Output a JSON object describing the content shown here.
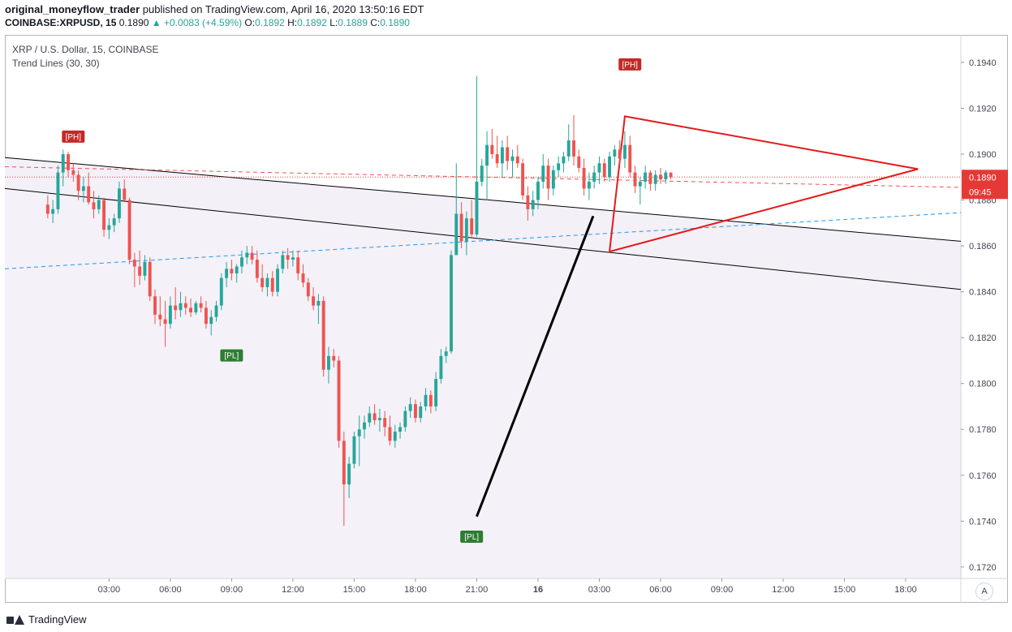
{
  "header": {
    "author": "original_moneyflow_trader",
    "published": "published on TradingView.com, April 16, 2020 13:50:16 EDT"
  },
  "symbol_line": {
    "symbol": "COINBASE:XRPUSD, 15",
    "last": "0.1890",
    "arrow": "▲",
    "change": "+0.0083 (+4.59%)",
    "o_label": "O:",
    "o": "0.1892",
    "h_label": "H:",
    "h": "0.1892",
    "l_label": "L:",
    "l": "0.1889",
    "c_label": "C:",
    "c": "0.1890"
  },
  "legend": {
    "title": "XRP / U.S. Dollar, 15, COINBASE",
    "indicator": "Trend Lines (30, 30)"
  },
  "footer": {
    "brand": "TradingView"
  },
  "scale_button": "A",
  "colors": {
    "up": "#26a69a",
    "down": "#ef5350",
    "pivot_high": "#c62828",
    "pivot_low": "#2e7d32",
    "triangle": "#e41a1a",
    "trend_black": "#000000",
    "dashed_blue": "#2196f3",
    "price_label": "#e53935"
  },
  "chart_data": {
    "type": "candlestick",
    "ylim": [
      0.1715,
      0.1952
    ],
    "y_ticks": [
      "0.1940",
      "0.1920",
      "0.1900",
      "0.1880",
      "0.1860",
      "0.1840",
      "0.1820",
      "0.1800",
      "0.1780",
      "0.1760",
      "0.1740",
      "0.1720"
    ],
    "x_ticks": [
      {
        "label": "03:00",
        "t": 3
      },
      {
        "label": "06:00",
        "t": 6
      },
      {
        "label": "09:00",
        "t": 9
      },
      {
        "label": "12:00",
        "t": 12
      },
      {
        "label": "15:00",
        "t": 15
      },
      {
        "label": "18:00",
        "t": 18
      },
      {
        "label": "21:00",
        "t": 21
      },
      {
        "label": "16",
        "t": 24
      },
      {
        "label": "03:00",
        "t": 27
      },
      {
        "label": "06:00",
        "t": 30
      },
      {
        "label": "09:00",
        "t": 33
      },
      {
        "label": "12:00",
        "t": 36
      },
      {
        "label": "15:00",
        "t": 39
      },
      {
        "label": "18:00",
        "t": 42
      }
    ],
    "xlim": [
      -2.1,
      44.7
    ],
    "last_price": "0.1890",
    "countdown": "09:45",
    "pivots": [
      {
        "label": "[PH]",
        "t": 1.25,
        "price": 0.19025,
        "type": "high"
      },
      {
        "label": "[PL]",
        "t": 9.0,
        "price": 0.1817,
        "type": "low"
      },
      {
        "label": "[PL]",
        "t": 20.75,
        "price": 0.1738,
        "type": "low"
      },
      {
        "label": "[PH]",
        "t": 28.5,
        "price": 0.1934,
        "type": "high"
      }
    ],
    "lines": [
      {
        "kind": "trend",
        "color": "black",
        "from": [
          -2.1,
          0.18985
        ],
        "to": [
          44.7,
          0.1862
        ]
      },
      {
        "kind": "trend",
        "color": "black",
        "from": [
          -2.1,
          0.1885
        ],
        "to": [
          44.7,
          0.1841
        ]
      },
      {
        "kind": "trend-thick",
        "color": "black",
        "from": [
          21.0,
          0.1742
        ],
        "to": [
          26.7,
          0.1873
        ]
      },
      {
        "kind": "dashed",
        "color": "blue",
        "from": [
          -2.1,
          0.185
        ],
        "to": [
          44.7,
          0.18745
        ]
      },
      {
        "kind": "dashed",
        "color": "red",
        "from": [
          -2.1,
          0.18945
        ],
        "to": [
          44.7,
          0.18855
        ]
      },
      {
        "kind": "triangle",
        "color": "red",
        "points": [
          [
            28.25,
            0.19165
          ],
          [
            42.6,
            0.18935
          ],
          [
            27.5,
            0.18575
          ]
        ]
      }
    ],
    "candles": [
      [
        0.1878,
        0.1882,
        0.1872,
        0.1874
      ],
      [
        0.1874,
        0.188,
        0.187,
        0.1876
      ],
      [
        0.1876,
        0.1895,
        0.1874,
        0.1892
      ],
      [
        0.1892,
        0.1902,
        0.1886,
        0.19
      ],
      [
        0.19,
        0.1901,
        0.189,
        0.1893
      ],
      [
        0.1893,
        0.1896,
        0.1888,
        0.1891
      ],
      [
        0.1891,
        0.1893,
        0.188,
        0.1884
      ],
      [
        0.1884,
        0.189,
        0.1879,
        0.1886
      ],
      [
        0.1886,
        0.1892,
        0.1878,
        0.1879
      ],
      [
        0.1879,
        0.1884,
        0.1872,
        0.1876
      ],
      [
        0.1876,
        0.1882,
        0.1874,
        0.188
      ],
      [
        0.188,
        0.1881,
        0.1864,
        0.1867
      ],
      [
        0.1867,
        0.1872,
        0.1863,
        0.1869
      ],
      [
        0.1869,
        0.1874,
        0.1866,
        0.1872
      ],
      [
        0.1872,
        0.1888,
        0.187,
        0.1885
      ],
      [
        0.1885,
        0.1889,
        0.1879,
        0.188
      ],
      [
        0.188,
        0.1881,
        0.1852,
        0.1854
      ],
      [
        0.1854,
        0.1857,
        0.1842,
        0.1851
      ],
      [
        0.1851,
        0.1858,
        0.1843,
        0.1847
      ],
      [
        0.1847,
        0.1856,
        0.1845,
        0.1853
      ],
      [
        0.1853,
        0.1855,
        0.1836,
        0.1838
      ],
      [
        0.1838,
        0.1841,
        0.1826,
        0.183
      ],
      [
        0.183,
        0.1838,
        0.1825,
        0.1828
      ],
      [
        0.1828,
        0.1836,
        0.1816,
        0.1826
      ],
      [
        0.1826,
        0.1838,
        0.1824,
        0.1834
      ],
      [
        0.1834,
        0.1842,
        0.1828,
        0.1832
      ],
      [
        0.1832,
        0.184,
        0.1829,
        0.1835
      ],
      [
        0.1835,
        0.1838,
        0.183,
        0.1833
      ],
      [
        0.1833,
        0.1837,
        0.1829,
        0.1831
      ],
      [
        0.1831,
        0.1836,
        0.183,
        0.1835
      ],
      [
        0.1835,
        0.1838,
        0.1831,
        0.1833
      ],
      [
        0.1833,
        0.1836,
        0.1824,
        0.1826
      ],
      [
        0.1826,
        0.1832,
        0.1821,
        0.1829
      ],
      [
        0.1829,
        0.1836,
        0.1827,
        0.1834
      ],
      [
        0.1834,
        0.1848,
        0.1832,
        0.1846
      ],
      [
        0.1846,
        0.1853,
        0.1842,
        0.185
      ],
      [
        0.185,
        0.1854,
        0.1845,
        0.1848
      ],
      [
        0.1848,
        0.1852,
        0.1844,
        0.1851
      ],
      [
        0.1851,
        0.1858,
        0.1848,
        0.1855
      ],
      [
        0.1855,
        0.186,
        0.1852,
        0.1857
      ],
      [
        0.1857,
        0.186,
        0.1852,
        0.1854
      ],
      [
        0.1854,
        0.1858,
        0.1844,
        0.1846
      ],
      [
        0.1846,
        0.1852,
        0.184,
        0.1842
      ],
      [
        0.1842,
        0.1848,
        0.1838,
        0.1846
      ],
      [
        0.1846,
        0.1849,
        0.1838,
        0.184
      ],
      [
        0.184,
        0.1852,
        0.1838,
        0.185
      ],
      [
        0.185,
        0.1858,
        0.1848,
        0.1856
      ],
      [
        0.1856,
        0.1859,
        0.185,
        0.1854
      ],
      [
        0.1854,
        0.1858,
        0.1851,
        0.1855
      ],
      [
        0.1855,
        0.1858,
        0.1845,
        0.1848
      ],
      [
        0.1848,
        0.1852,
        0.1842,
        0.1844
      ],
      [
        0.1844,
        0.1846,
        0.1836,
        0.1838
      ],
      [
        0.1838,
        0.1842,
        0.1832,
        0.1834
      ],
      [
        0.1834,
        0.1839,
        0.1826,
        0.1836
      ],
      [
        0.1836,
        0.1838,
        0.1803,
        0.1806
      ],
      [
        0.1806,
        0.1816,
        0.18,
        0.1812
      ],
      [
        0.1812,
        0.1815,
        0.1807,
        0.181
      ],
      [
        0.181,
        0.1812,
        0.1772,
        0.1775
      ],
      [
        0.1775,
        0.1779,
        0.1738,
        0.1756
      ],
      [
        0.1756,
        0.1768,
        0.175,
        0.1765
      ],
      [
        0.1765,
        0.1779,
        0.1763,
        0.1777
      ],
      [
        0.1777,
        0.1786,
        0.1764,
        0.178
      ],
      [
        0.178,
        0.1786,
        0.1776,
        0.1783
      ],
      [
        0.1783,
        0.179,
        0.1781,
        0.1787
      ],
      [
        0.1787,
        0.1791,
        0.1782,
        0.1784
      ],
      [
        0.1784,
        0.1789,
        0.1779,
        0.1785
      ],
      [
        0.1785,
        0.1788,
        0.1777,
        0.1781
      ],
      [
        0.1781,
        0.1786,
        0.1773,
        0.1775
      ],
      [
        0.1775,
        0.1782,
        0.1772,
        0.1779
      ],
      [
        0.1779,
        0.1783,
        0.1776,
        0.1781
      ],
      [
        0.1781,
        0.179,
        0.1779,
        0.1788
      ],
      [
        0.1788,
        0.1794,
        0.1785,
        0.1791
      ],
      [
        0.1791,
        0.1793,
        0.1783,
        0.1785
      ],
      [
        0.1785,
        0.1792,
        0.1783,
        0.179
      ],
      [
        0.179,
        0.1798,
        0.1788,
        0.1795
      ],
      [
        0.1795,
        0.1797,
        0.1787,
        0.179
      ],
      [
        0.179,
        0.1805,
        0.1788,
        0.1802
      ],
      [
        0.1802,
        0.1815,
        0.18,
        0.1812
      ],
      [
        0.1812,
        0.1816,
        0.1809,
        0.1814
      ],
      [
        0.1814,
        0.1858,
        0.1813,
        0.1856
      ],
      [
        0.1856,
        0.1896,
        0.1857,
        0.1874
      ],
      [
        0.1874,
        0.1879,
        0.1859,
        0.1862
      ],
      [
        0.1862,
        0.1875,
        0.1856,
        0.1872
      ],
      [
        0.1872,
        0.188,
        0.1864,
        0.1865
      ],
      [
        0.1865,
        0.1934,
        0.1864,
        0.1888
      ],
      [
        0.1888,
        0.1898,
        0.1886,
        0.1895
      ],
      [
        0.1895,
        0.191,
        0.188,
        0.1904
      ],
      [
        0.1904,
        0.1911,
        0.1898,
        0.19
      ],
      [
        0.19,
        0.1908,
        0.1894,
        0.1896
      ],
      [
        0.1896,
        0.1906,
        0.189,
        0.1903
      ],
      [
        0.1903,
        0.1908,
        0.1893,
        0.1897
      ],
      [
        0.1897,
        0.1902,
        0.189,
        0.1899
      ],
      [
        0.1899,
        0.1904,
        0.1894,
        0.1896
      ],
      [
        0.1896,
        0.1898,
        0.188,
        0.1882
      ],
      [
        0.1882,
        0.1886,
        0.1871,
        0.1876
      ],
      [
        0.1876,
        0.1884,
        0.1873,
        0.188
      ],
      [
        0.188,
        0.189,
        0.1876,
        0.1888
      ],
      [
        0.1888,
        0.19,
        0.1885,
        0.1895
      ],
      [
        0.1895,
        0.1898,
        0.188,
        0.1885
      ],
      [
        0.1885,
        0.1895,
        0.1882,
        0.1893
      ],
      [
        0.1893,
        0.1899,
        0.189,
        0.1896
      ],
      [
        0.1896,
        0.1901,
        0.1892,
        0.1899
      ],
      [
        0.1899,
        0.1913,
        0.1897,
        0.1906
      ],
      [
        0.1906,
        0.1917,
        0.1895,
        0.1899
      ],
      [
        0.1899,
        0.1902,
        0.1892,
        0.1894
      ],
      [
        0.1894,
        0.1898,
        0.1882,
        0.1885
      ],
      [
        0.1885,
        0.1892,
        0.188,
        0.1888
      ],
      [
        0.1888,
        0.1895,
        0.1885,
        0.1892
      ],
      [
        0.1892,
        0.1899,
        0.1887,
        0.1896
      ],
      [
        0.1896,
        0.1898,
        0.1888,
        0.189
      ],
      [
        0.189,
        0.1901,
        0.1888,
        0.1899
      ],
      [
        0.1899,
        0.1904,
        0.1895,
        0.1902
      ],
      [
        0.1902,
        0.1906,
        0.1895,
        0.1898
      ],
      [
        0.1898,
        0.191,
        0.1894,
        0.1904
      ],
      [
        0.1904,
        0.1908,
        0.189,
        0.1892
      ],
      [
        0.1892,
        0.1895,
        0.1883,
        0.1886
      ],
      [
        0.1886,
        0.189,
        0.1878,
        0.1888
      ],
      [
        0.1888,
        0.1895,
        0.1885,
        0.1892
      ],
      [
        0.1892,
        0.1893,
        0.1884,
        0.1887
      ],
      [
        0.1887,
        0.1893,
        0.1884,
        0.1891
      ],
      [
        0.1891,
        0.1894,
        0.1887,
        0.1889
      ],
      [
        0.1889,
        0.1893,
        0.1887,
        0.1892
      ],
      [
        0.1892,
        0.1892,
        0.1889,
        0.189
      ]
    ]
  }
}
